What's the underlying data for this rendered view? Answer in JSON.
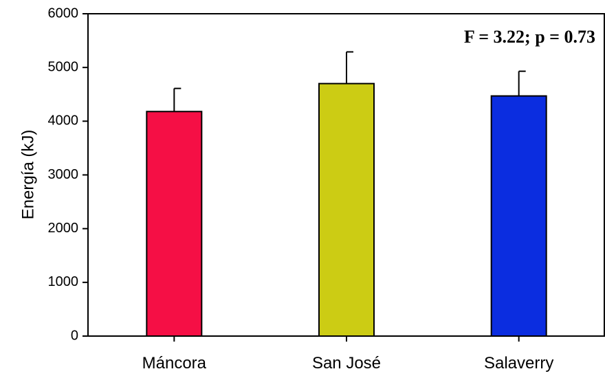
{
  "chart_data": {
    "type": "bar",
    "categories": [
      "Máncora",
      "San José",
      "Salaverry"
    ],
    "values": [
      4180,
      4700,
      4470
    ],
    "error": [
      430,
      590,
      460
    ],
    "colors": [
      "#f50f45",
      "#cccc14",
      "#0b2de0"
    ],
    "ylabel": "Energía (kJ)",
    "ylim": [
      0,
      6000
    ],
    "yticks": [
      0,
      1000,
      2000,
      3000,
      4000,
      5000,
      6000
    ],
    "annotation": "F = 3.22; p = 0.73",
    "grid": false,
    "legend": "none"
  }
}
